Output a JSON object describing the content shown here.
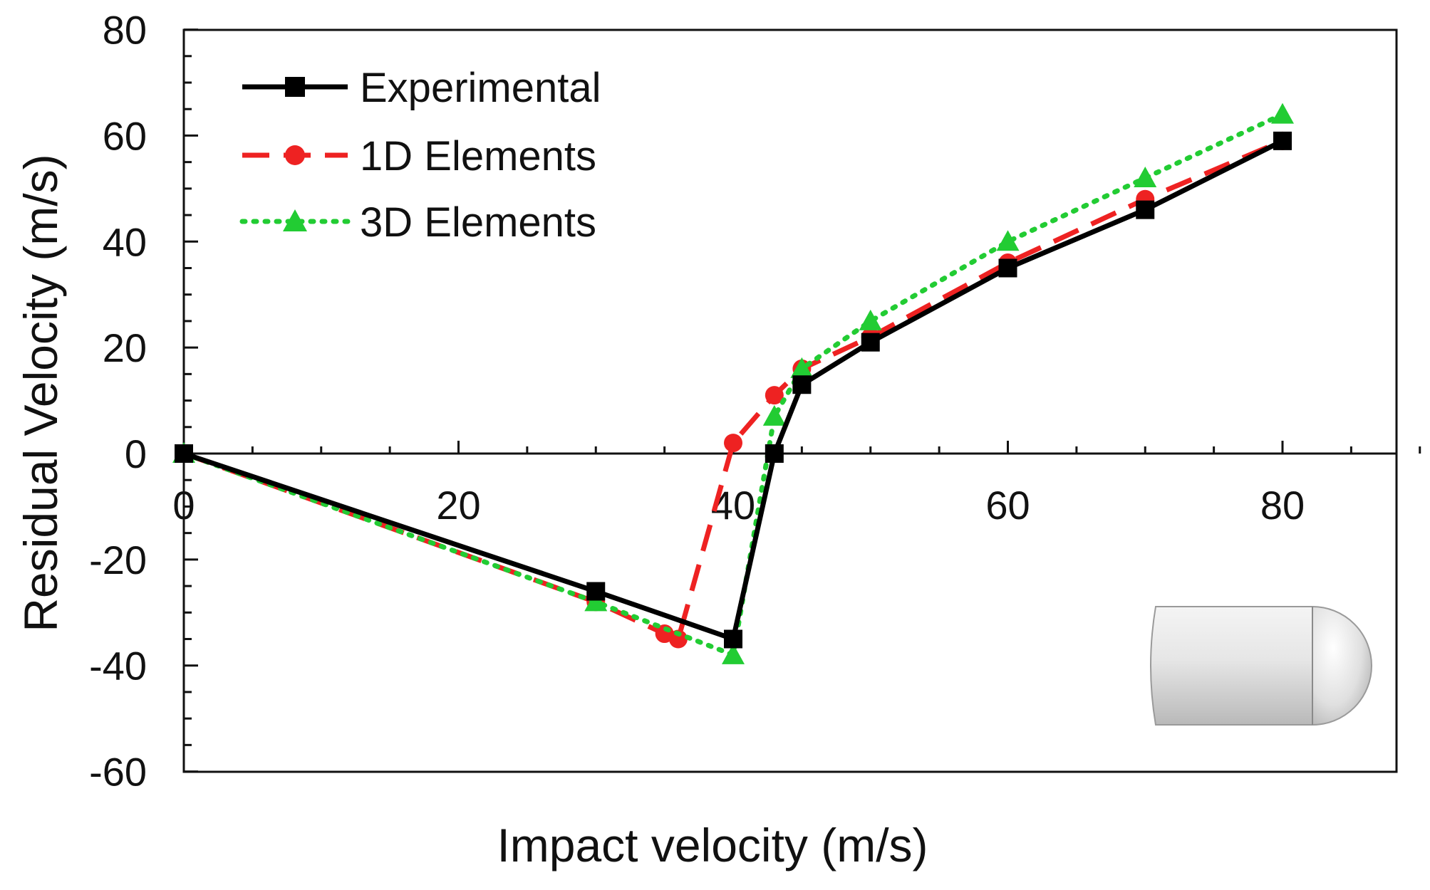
{
  "chart_data": {
    "type": "line",
    "xlabel": "Impact velocity (m/s)",
    "ylabel": "Residual Velocity (m/s)",
    "xlim": [
      0,
      90
    ],
    "ylim": [
      -60,
      80
    ],
    "xticks": [
      0,
      20,
      40,
      60,
      80
    ],
    "yticks": [
      80,
      60,
      40,
      20,
      0,
      -20,
      -40,
      -60
    ],
    "grid": false,
    "legend_position": "top-left",
    "series": [
      {
        "name": "Experimental",
        "color": "#000000",
        "line_style": "solid",
        "marker": "square",
        "x": [
          0,
          30,
          40,
          43,
          45,
          50,
          60,
          70,
          80
        ],
        "y": [
          0,
          -26,
          -35,
          0,
          13,
          21,
          35,
          46,
          59
        ]
      },
      {
        "name": "1D Elements",
        "color": "#ee2222",
        "line_style": "dashed",
        "marker": "circle",
        "x": [
          0,
          30,
          35,
          36,
          40,
          43,
          45,
          50,
          60,
          70,
          80
        ],
        "y": [
          0,
          -28,
          -34,
          -35,
          2,
          11,
          16,
          22,
          36,
          48,
          59
        ]
      },
      {
        "name": "3D Elements",
        "color": "#22cc33",
        "line_style": "dotted",
        "marker": "triangle",
        "x": [
          0,
          30,
          40,
          43,
          45,
          50,
          60,
          70,
          80
        ],
        "y": [
          0,
          -28,
          -38,
          7,
          16,
          25,
          40,
          52,
          64
        ]
      }
    ],
    "inset_image": "projectile-icon"
  }
}
